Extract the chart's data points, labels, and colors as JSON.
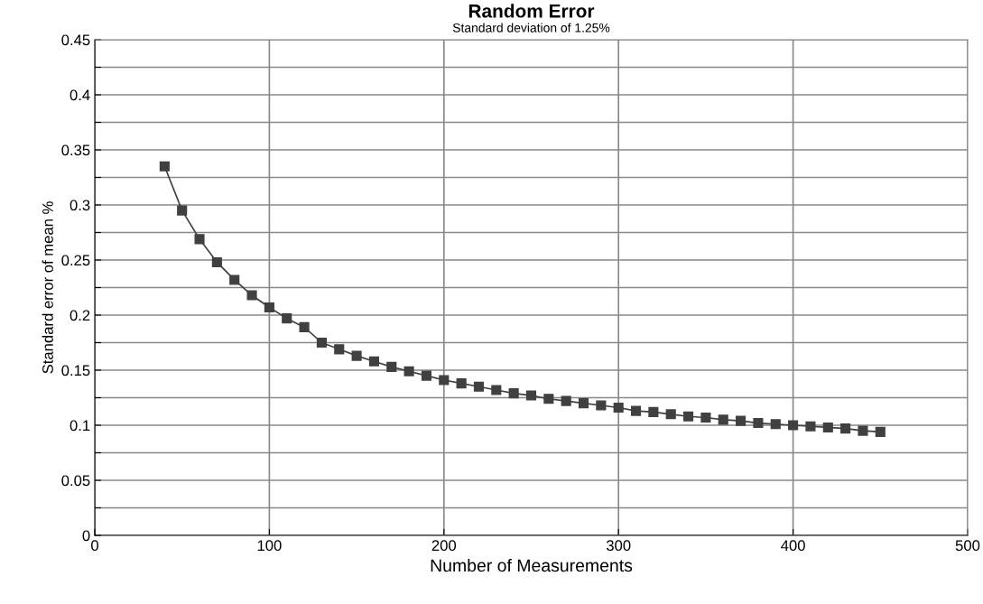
{
  "chart_data": {
    "type": "line",
    "title": "Random Error",
    "subtitle": "Standard deviation of 1.25%",
    "xlabel": "Number of Measurements",
    "ylabel": "Standard error of mean %",
    "x": [
      40,
      50,
      60,
      70,
      80,
      90,
      100,
      110,
      120,
      130,
      140,
      150,
      160,
      170,
      180,
      190,
      200,
      210,
      220,
      230,
      240,
      250,
      260,
      270,
      280,
      290,
      300,
      310,
      320,
      330,
      340,
      350,
      360,
      370,
      380,
      390,
      400,
      410,
      420,
      430,
      440,
      450
    ],
    "series": [
      {
        "color": "#404040",
        "values": [
          0.335,
          0.295,
          0.269,
          0.248,
          0.232,
          0.218,
          0.207,
          0.197,
          0.189,
          0.175,
          0.169,
          0.163,
          0.158,
          0.153,
          0.149,
          0.145,
          0.141,
          0.138,
          0.135,
          0.132,
          0.129,
          0.127,
          0.124,
          0.122,
          0.12,
          0.118,
          0.116,
          0.113,
          0.112,
          0.11,
          0.108,
          0.107,
          0.105,
          0.104,
          0.102,
          0.101,
          0.1,
          0.099,
          0.098,
          0.097,
          0.095,
          0.094
        ]
      }
    ],
    "xlim": [
      0,
      500
    ],
    "xticks": [
      0,
      100,
      200,
      300,
      400,
      500
    ],
    "ylim": [
      0,
      0.45
    ],
    "yticks": [
      0,
      {
        "value": 0.025,
        "label": null
      },
      0.05,
      {
        "value": 0.075,
        "label": null
      },
      0.1,
      {
        "value": 0.125,
        "label": null
      },
      0.15,
      {
        "value": 0.175,
        "label": null
      },
      0.2,
      {
        "value": 0.225,
        "label": null
      },
      0.25,
      {
        "value": 0.275,
        "label": null
      },
      0.3,
      {
        "value": 0.325,
        "label": null
      },
      0.35,
      {
        "value": 0.375,
        "label": null
      },
      0.4,
      {
        "value": 0.425,
        "label": null
      },
      0.45
    ],
    "grid": true,
    "marker": "square",
    "line_style": "solid"
  }
}
